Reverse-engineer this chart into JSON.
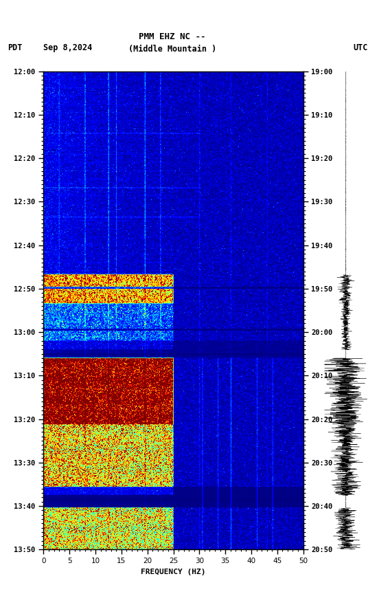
{
  "title_line1": "PMM EHZ NC --",
  "title_line2": "(Middle Mountain )",
  "date_label": "Sep 8,2024",
  "left_timezone": "PDT",
  "right_timezone": "UTC",
  "left_times": [
    "12:00",
    "12:10",
    "12:20",
    "12:30",
    "12:40",
    "12:50",
    "13:00",
    "13:10",
    "13:20",
    "13:30",
    "13:40",
    "13:50"
  ],
  "right_times": [
    "19:00",
    "19:10",
    "19:20",
    "19:30",
    "19:40",
    "19:50",
    "20:00",
    "20:10",
    "20:20",
    "20:30",
    "20:40",
    "20:50"
  ],
  "freq_min": 0,
  "freq_max": 50,
  "xlabel": "FREQUENCY (HZ)",
  "bg_color": "#ffffff",
  "seed": 42
}
